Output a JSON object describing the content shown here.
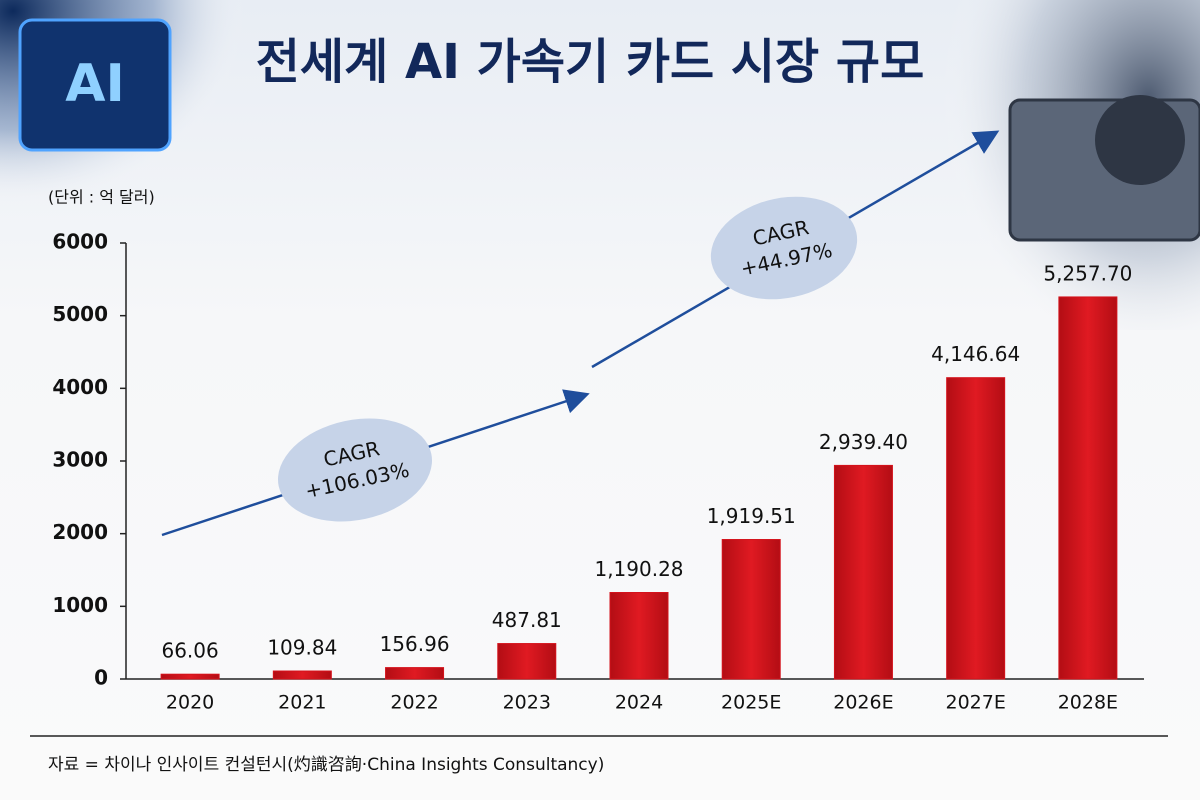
{
  "chart_data": {
    "type": "bar",
    "title": "전세계 AI 가속기 카드 시장 규모",
    "chip_label": "AI",
    "unit_label": "(단위 : 억 달러)",
    "categories": [
      "2020",
      "2021",
      "2022",
      "2023",
      "2024",
      "2025E",
      "2026E",
      "2027E",
      "2028E"
    ],
    "values": [
      66.06,
      109.84,
      156.96,
      487.81,
      1190.28,
      1919.51,
      2939.4,
      4146.64,
      5257.7
    ],
    "value_labels": [
      "66.06",
      "109.84",
      "156.96",
      "487.81",
      "1,190.28",
      "1,919.51",
      "2,939.40",
      "4,146.64",
      "5,257.70"
    ],
    "color": "#d4121b",
    "ylim": [
      0,
      6000
    ],
    "yticks": [
      0,
      1000,
      2000,
      3000,
      4000,
      5000,
      6000
    ],
    "annotations": [
      {
        "label": "CAGR",
        "value": "+106.03%"
      },
      {
        "label": "CAGR",
        "value": "+44.97%"
      }
    ],
    "source": "자료 = 차이나 인사이트 컨설턴시(灼識咨詢·China Insights Consultancy)"
  }
}
